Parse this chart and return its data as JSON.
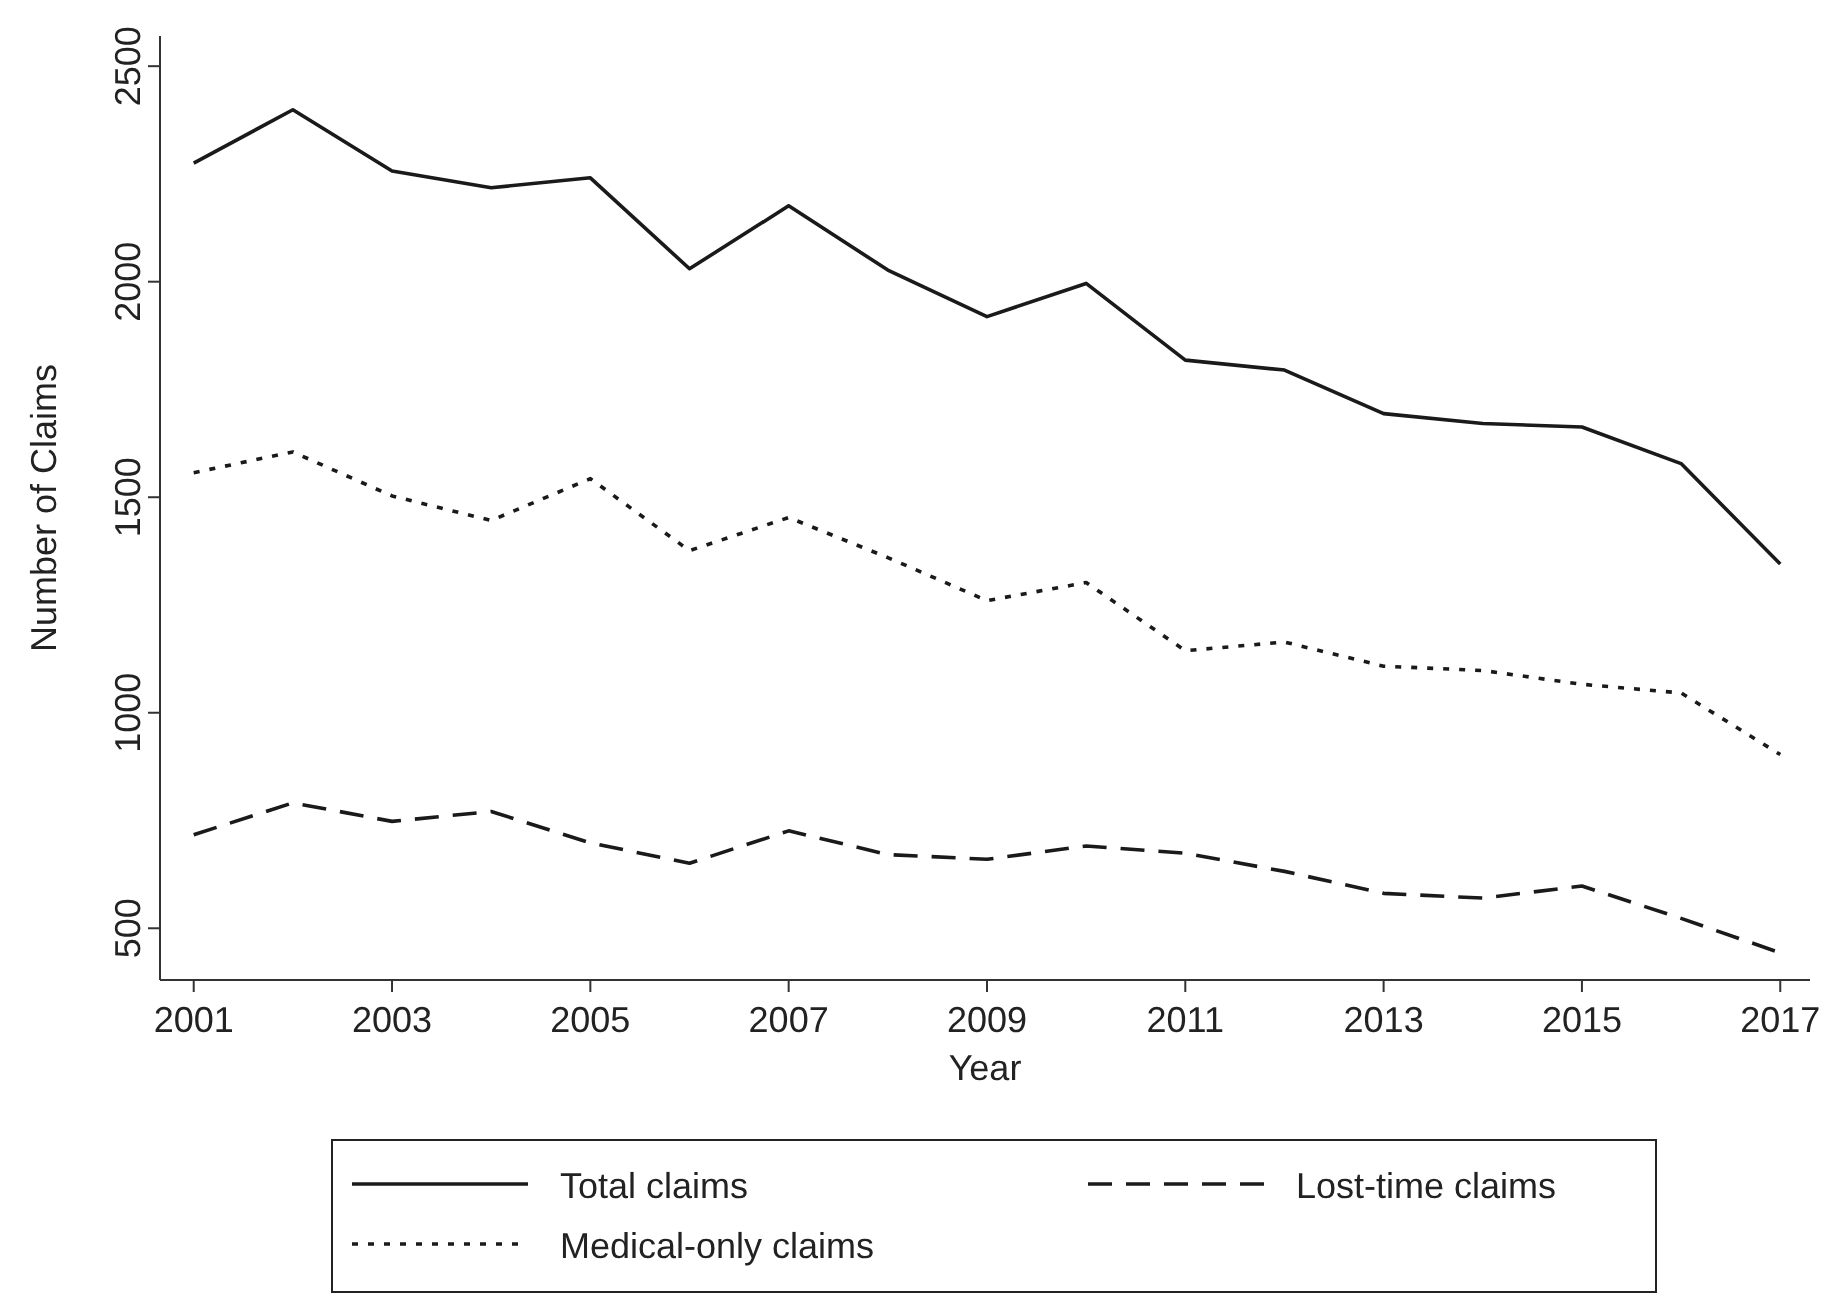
{
  "chart_data": {
    "type": "line",
    "xlabel": "Year",
    "ylabel": "Number of Claims",
    "x": [
      2001,
      2002,
      2003,
      2004,
      2005,
      2006,
      2007,
      2008,
      2009,
      2010,
      2011,
      2012,
      2013,
      2014,
      2015,
      2016,
      2017
    ],
    "series": [
      {
        "name": "Total claims",
        "color": "#1a1a1a",
        "line_style": "solid",
        "values": [
          2275,
          2399,
          2257,
          2218,
          2241,
          2030,
          2176,
          2027,
          1919,
          1996,
          1818,
          1795,
          1694,
          1671,
          1663,
          1578,
          1345
        ]
      },
      {
        "name": "Lost-time claims",
        "color": "#1a1a1a",
        "line_style": "dashed",
        "values": [
          717,
          791,
          748,
          771,
          698,
          651,
          726,
          671,
          660,
          691,
          674,
          632,
          581,
          570,
          598,
          523,
          443
        ]
      },
      {
        "name": "Medical-only claims",
        "color": "#1a1a1a",
        "line_style": "dotted",
        "values": [
          1557,
          1605,
          1503,
          1446,
          1543,
          1376,
          1453,
          1360,
          1260,
          1302,
          1144,
          1164,
          1108,
          1098,
          1066,
          1046,
          903
        ]
      }
    ],
    "xlim": [
      2000.66,
      2017.3
    ],
    "xticks": [
      2001,
      2003,
      2005,
      2007,
      2009,
      2011,
      2013,
      2015,
      2017
    ],
    "ylim": [
      380,
      2570
    ],
    "yticks": [
      500,
      1000,
      1500,
      2000,
      2500
    ],
    "legend": "bottom",
    "grid": false,
    "marker": "none"
  }
}
